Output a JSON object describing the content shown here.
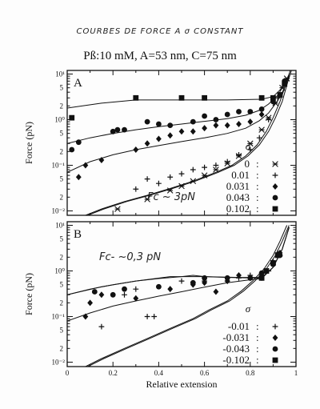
{
  "header": {
    "handwritten_title": "COURBES DE FORCE A σ CONSTANT",
    "conditions": "Pß:10 mM, A=53 nm, C=75 nm"
  },
  "chart_data": [
    {
      "type": "scatter",
      "panel_label": "A",
      "xlabel": "",
      "ylabel": "Force (pN)",
      "xlim": [
        0,
        1
      ],
      "ylim": [
        0.008,
        12
      ],
      "yscale": "log",
      "y_decade_labels": [
        "10⁻²",
        "10⁻¹",
        "10⁰",
        "10¹"
      ],
      "y_minor_labels": [
        "2",
        "5",
        "2",
        "5",
        "2",
        "5"
      ],
      "annotation": "Fc ~ 3pN",
      "legend_title": "σ",
      "legend_position": "bottom-right",
      "series": [
        {
          "name": "0",
          "marker": "asterisk",
          "points": [
            [
              0.22,
              0.011
            ],
            [
              0.35,
              0.018
            ],
            [
              0.45,
              0.028
            ],
            [
              0.5,
              0.035
            ],
            [
              0.55,
              0.045
            ],
            [
              0.6,
              0.06
            ],
            [
              0.65,
              0.08
            ],
            [
              0.7,
              0.11
            ],
            [
              0.75,
              0.16
            ],
            [
              0.8,
              0.3
            ],
            [
              0.85,
              0.6
            ],
            [
              0.88,
              1.1
            ],
            [
              0.91,
              2.3
            ],
            [
              0.94,
              5
            ],
            [
              0.96,
              8
            ]
          ]
        },
        {
          "name": "0.01",
          "marker": "plus",
          "points": [
            [
              0.3,
              0.03
            ],
            [
              0.35,
              0.05
            ],
            [
              0.4,
              0.04
            ],
            [
              0.45,
              0.055
            ],
            [
              0.5,
              0.065
            ],
            [
              0.55,
              0.08
            ],
            [
              0.6,
              0.09
            ],
            [
              0.65,
              0.1
            ],
            [
              0.7,
              0.12
            ],
            [
              0.75,
              0.17
            ],
            [
              0.8,
              0.22
            ],
            [
              0.84,
              0.4
            ],
            [
              0.88,
              1.0
            ],
            [
              0.92,
              3
            ]
          ]
        },
        {
          "name": "0.031",
          "marker": "diamond",
          "points": [
            [
              0.05,
              0.055
            ],
            [
              0.08,
              0.1
            ],
            [
              0.15,
              0.13
            ],
            [
              0.3,
              0.22
            ],
            [
              0.35,
              0.3
            ],
            [
              0.4,
              0.38
            ],
            [
              0.45,
              0.45
            ],
            [
              0.5,
              0.55
            ],
            [
              0.55,
              0.55
            ],
            [
              0.6,
              0.65
            ],
            [
              0.65,
              0.75
            ],
            [
              0.7,
              0.75
            ],
            [
              0.75,
              0.8
            ],
            [
              0.8,
              0.9
            ],
            [
              0.85,
              1.3
            ],
            [
              0.9,
              2.5
            ],
            [
              0.95,
              6
            ]
          ]
        },
        {
          "name": "0.043",
          "marker": "circle",
          "points": [
            [
              0.02,
              0.22
            ],
            [
              0.05,
              0.32
            ],
            [
              0.2,
              0.55
            ],
            [
              0.22,
              0.6
            ],
            [
              0.25,
              0.6
            ],
            [
              0.35,
              0.9
            ],
            [
              0.4,
              0.8
            ],
            [
              0.45,
              0.75
            ],
            [
              0.55,
              0.9
            ],
            [
              0.6,
              1.2
            ],
            [
              0.65,
              1.0
            ],
            [
              0.7,
              1.3
            ],
            [
              0.75,
              1.5
            ],
            [
              0.8,
              1.5
            ],
            [
              0.85,
              1.7
            ],
            [
              0.9,
              2.5
            ],
            [
              0.95,
              7
            ]
          ]
        },
        {
          "name": "0.102",
          "marker": "square",
          "points": [
            [
              0.02,
              1.1
            ],
            [
              0.3,
              3
            ],
            [
              0.5,
              3
            ],
            [
              0.6,
              3
            ],
            [
              0.85,
              3
            ],
            [
              0.9,
              3
            ],
            [
              0.93,
              3.5
            ],
            [
              0.95,
              6
            ]
          ]
        }
      ],
      "fit_curves": [
        {
          "points": [
            [
              0.08,
              0.008
            ],
            [
              0.15,
              0.011
            ],
            [
              0.25,
              0.016
            ],
            [
              0.35,
              0.022
            ],
            [
              0.45,
              0.031
            ],
            [
              0.55,
              0.045
            ],
            [
              0.65,
              0.07
            ],
            [
              0.72,
              0.1
            ],
            [
              0.78,
              0.16
            ],
            [
              0.83,
              0.28
            ],
            [
              0.87,
              0.55
            ],
            [
              0.9,
              1.1
            ],
            [
              0.93,
              2.5
            ],
            [
              0.96,
              7
            ],
            [
              0.975,
              12
            ]
          ]
        },
        {
          "points": [
            [
              0.09,
              0.008
            ],
            [
              0.16,
              0.011
            ],
            [
              0.26,
              0.016
            ],
            [
              0.36,
              0.022
            ],
            [
              0.46,
              0.031
            ],
            [
              0.56,
              0.045
            ],
            [
              0.66,
              0.07
            ],
            [
              0.73,
              0.1
            ],
            [
              0.79,
              0.16
            ],
            [
              0.84,
              0.28
            ],
            [
              0.88,
              0.55
            ],
            [
              0.91,
              1.1
            ],
            [
              0.94,
              2.5
            ],
            [
              0.965,
              7
            ],
            [
              0.98,
              12
            ]
          ]
        },
        {
          "points": [
            [
              0,
              0.07
            ],
            [
              0.1,
              0.12
            ],
            [
              0.2,
              0.17
            ],
            [
              0.3,
              0.22
            ],
            [
              0.4,
              0.27
            ],
            [
              0.5,
              0.33
            ],
            [
              0.6,
              0.4
            ],
            [
              0.7,
              0.5
            ],
            [
              0.78,
              0.65
            ],
            [
              0.84,
              0.95
            ],
            [
              0.88,
              1.4
            ],
            [
              0.92,
              2.6
            ],
            [
              0.95,
              5
            ],
            [
              0.97,
              9
            ]
          ]
        },
        {
          "points": [
            [
              0,
              0.3
            ],
            [
              0.1,
              0.4
            ],
            [
              0.2,
              0.5
            ],
            [
              0.3,
              0.6
            ],
            [
              0.4,
              0.7
            ],
            [
              0.5,
              0.8
            ],
            [
              0.6,
              0.92
            ],
            [
              0.7,
              1.05
            ],
            [
              0.78,
              1.25
            ],
            [
              0.84,
              1.6
            ],
            [
              0.88,
              2.2
            ],
            [
              0.92,
              3.4
            ],
            [
              0.95,
              6
            ],
            [
              0.97,
              10
            ]
          ]
        },
        {
          "points": [
            [
              0,
              1.8
            ],
            [
              0.15,
              2.3
            ],
            [
              0.3,
              2.7
            ],
            [
              0.5,
              2.7
            ],
            [
              0.7,
              2.7
            ],
            [
              0.85,
              2.8
            ],
            [
              0.9,
              3.2
            ],
            [
              0.94,
              5
            ],
            [
              0.97,
              9
            ]
          ]
        }
      ]
    },
    {
      "type": "scatter",
      "panel_label": "B",
      "xlabel": "Relative extension",
      "ylabel": "Force (pN)",
      "xlim": [
        0,
        1
      ],
      "ylim": [
        0.008,
        12
      ],
      "yscale": "log",
      "x_tick_labels": [
        "0",
        "0.2",
        "0.4",
        "0.6",
        "0.8",
        "1"
      ],
      "y_decade_labels": [
        "10⁻²",
        "10⁻¹",
        "10⁰",
        "10¹"
      ],
      "y_minor_labels": [
        "2",
        "5",
        "2",
        "5",
        "2",
        "5"
      ],
      "annotation": "Fc- ~0,3 pN",
      "legend_title": "σ",
      "legend_position": "bottom-right",
      "series": [
        {
          "name": "-0.01",
          "marker": "plus",
          "points": [
            [
              0.15,
              0.06
            ],
            [
              0.25,
              0.3
            ],
            [
              0.3,
              0.4
            ],
            [
              0.35,
              0.1
            ],
            [
              0.38,
              0.1
            ],
            [
              0.5,
              0.6
            ],
            [
              0.6,
              0.6
            ],
            [
              0.7,
              0.6
            ],
            [
              0.75,
              0.7
            ],
            [
              0.8,
              0.8
            ],
            [
              0.85,
              0.7
            ],
            [
              0.88,
              1.0
            ],
            [
              0.9,
              1.6
            ],
            [
              0.92,
              2.5
            ]
          ]
        },
        {
          "name": "-0.031",
          "marker": "diamond",
          "points": [
            [
              0.08,
              0.1
            ],
            [
              0.1,
              0.2
            ],
            [
              0.15,
              0.3
            ],
            [
              0.3,
              0.25
            ],
            [
              0.45,
              0.4
            ],
            [
              0.55,
              0.5
            ],
            [
              0.6,
              0.55
            ],
            [
              0.65,
              0.35
            ],
            [
              0.7,
              0.6
            ],
            [
              0.75,
              0.8
            ],
            [
              0.8,
              0.7
            ],
            [
              0.85,
              0.8
            ],
            [
              0.9,
              1.5
            ],
            [
              0.93,
              2.5
            ]
          ]
        },
        {
          "name": "-0.043",
          "marker": "circle",
          "points": [
            [
              0.12,
              0.35
            ],
            [
              0.2,
              0.3
            ],
            [
              0.25,
              0.4
            ],
            [
              0.4,
              0.45
            ],
            [
              0.55,
              0.55
            ],
            [
              0.6,
              0.7
            ],
            [
              0.7,
              0.7
            ],
            [
              0.8,
              0.7
            ],
            [
              0.85,
              0.9
            ],
            [
              0.9,
              1.4
            ],
            [
              0.93,
              2.2
            ]
          ]
        },
        {
          "name": "-0.102",
          "marker": "square",
          "points": [
            [
              0.85,
              0.7
            ],
            [
              0.87,
              1.0
            ],
            [
              0.9,
              1.5
            ],
            [
              0.92,
              2.2
            ]
          ]
        }
      ],
      "fit_curves": [
        {
          "points": [
            [
              0.08,
              0.008
            ],
            [
              0.15,
              0.012
            ],
            [
              0.25,
              0.02
            ],
            [
              0.35,
              0.033
            ],
            [
              0.45,
              0.055
            ],
            [
              0.55,
              0.09
            ],
            [
              0.62,
              0.14
            ],
            [
              0.7,
              0.22
            ],
            [
              0.76,
              0.36
            ],
            [
              0.81,
              0.6
            ],
            [
              0.86,
              1.1
            ],
            [
              0.9,
              2.2
            ],
            [
              0.93,
              4.5
            ],
            [
              0.96,
              10
            ]
          ]
        },
        {
          "points": [
            [
              0.09,
              0.008
            ],
            [
              0.16,
              0.012
            ],
            [
              0.26,
              0.02
            ],
            [
              0.36,
              0.033
            ],
            [
              0.46,
              0.055
            ],
            [
              0.56,
              0.09
            ],
            [
              0.63,
              0.14
            ],
            [
              0.71,
              0.22
            ],
            [
              0.77,
              0.36
            ],
            [
              0.82,
              0.6
            ],
            [
              0.87,
              1.1
            ],
            [
              0.91,
              2.2
            ],
            [
              0.94,
              4.5
            ],
            [
              0.97,
              10
            ]
          ]
        },
        {
          "points": [
            [
              0,
              0.08
            ],
            [
              0.1,
              0.12
            ],
            [
              0.2,
              0.17
            ],
            [
              0.3,
              0.22
            ],
            [
              0.4,
              0.28
            ],
            [
              0.5,
              0.35
            ],
            [
              0.6,
              0.44
            ],
            [
              0.7,
              0.55
            ],
            [
              0.78,
              0.62
            ],
            [
              0.85,
              0.68
            ],
            [
              0.9,
              1.2
            ],
            [
              0.94,
              3
            ],
            [
              0.97,
              9
            ]
          ]
        },
        {
          "points": [
            [
              0,
              0.3
            ],
            [
              0.1,
              0.4
            ],
            [
              0.2,
              0.5
            ],
            [
              0.3,
              0.6
            ],
            [
              0.4,
              0.68
            ],
            [
              0.5,
              0.75
            ],
            [
              0.55,
              0.8
            ],
            [
              0.6,
              0.75
            ],
            [
              0.7,
              0.72
            ],
            [
              0.8,
              0.7
            ],
            [
              0.85,
              0.7
            ],
            [
              0.9,
              1.2
            ],
            [
              0.94,
              3
            ],
            [
              0.97,
              9
            ]
          ]
        },
        {
          "points": [
            [
              0,
              0.3
            ],
            [
              0.15,
              0.45
            ],
            [
              0.3,
              0.6
            ],
            [
              0.45,
              0.75
            ],
            [
              0.6,
              0.75
            ],
            [
              0.75,
              0.72
            ],
            [
              0.85,
              0.72
            ],
            [
              0.9,
              1.2
            ],
            [
              0.94,
              3
            ],
            [
              0.97,
              9
            ]
          ]
        }
      ]
    }
  ]
}
